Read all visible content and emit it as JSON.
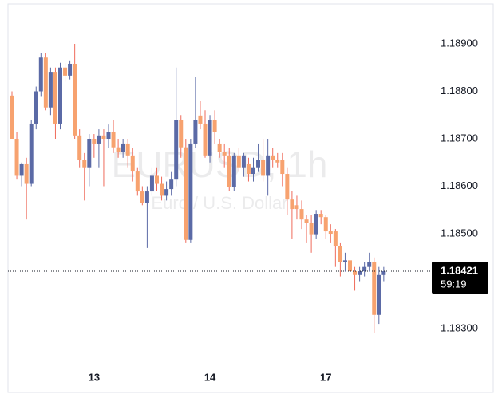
{
  "chart_data": {
    "type": "candlestick",
    "title": "EURUSD, 1h",
    "subtitle": "Euro / U.S. Dollar",
    "categories": [
      null,
      null,
      null,
      null,
      null,
      null,
      null,
      null,
      null,
      null,
      null,
      null,
      null,
      null,
      null,
      null,
      null,
      "13",
      null,
      null,
      null,
      null,
      null,
      null,
      null,
      null,
      null,
      null,
      null,
      null,
      null,
      null,
      null,
      null,
      null,
      null,
      null,
      null,
      null,
      null,
      null,
      "14",
      null,
      null,
      null,
      null,
      null,
      null,
      null,
      null,
      null,
      null,
      null,
      null,
      null,
      null,
      null,
      null,
      null,
      null,
      null,
      null,
      null,
      null,
      null,
      "17",
      null,
      null,
      null,
      null,
      null,
      null,
      null,
      null,
      null,
      null,
      null,
      null
    ],
    "open": [
      1.18791,
      1.187,
      1.18622,
      1.18648,
      1.18605,
      1.18732,
      1.188,
      1.18871,
      1.18766,
      1.18841,
      1.18732,
      1.1885,
      1.18833,
      1.18858,
      1.18707,
      1.18656,
      1.1864,
      1.187,
      1.1869,
      1.18707,
      1.187,
      1.18715,
      1.18682,
      1.18673,
      1.1869,
      1.18665,
      1.18631,
      1.18589,
      1.18564,
      1.18589,
      1.18622,
      1.18605,
      1.1858,
      1.18594,
      1.18614,
      1.1874,
      1.18682,
      1.18487,
      1.1869,
      1.18749,
      1.18732,
      1.18665,
      1.1874,
      1.1869,
      1.18673,
      1.18665,
      1.18598,
      1.18665,
      1.1864,
      1.18648,
      1.18626,
      1.1864,
      1.18656,
      1.18622,
      1.18665,
      1.18656,
      1.18656,
      1.18626,
      1.18572,
      1.1856,
      1.18552,
      1.1853,
      1.18522,
      1.18499,
      1.18542,
      1.18535,
      1.18505,
      1.18505,
      1.18474,
      1.1844,
      1.18444,
      1.18421,
      1.18413,
      1.18421,
      1.1843,
      1.1844,
      1.18329,
      1.18413
    ],
    "high": [
      1.188,
      1.18715,
      1.1865,
      1.1866,
      1.1874,
      1.1881,
      1.1888,
      1.1888,
      1.1885,
      1.1885,
      1.1886,
      1.1886,
      1.18865,
      1.189,
      1.1872,
      1.1867,
      1.1871,
      1.1871,
      1.1872,
      1.1872,
      1.1873,
      1.1874,
      1.187,
      1.187,
      1.187,
      1.1868,
      1.1864,
      1.186,
      1.186,
      1.1864,
      1.1864,
      1.1862,
      1.1861,
      1.1863,
      1.1885,
      1.1875,
      1.187,
      1.187,
      1.1883,
      1.1878,
      1.1876,
      1.1875,
      1.1876,
      1.187,
      1.1869,
      1.1868,
      1.1867,
      1.1868,
      1.1867,
      1.1866,
      1.1866,
      1.1869,
      1.187,
      1.187,
      1.1868,
      1.1867,
      1.1867,
      1.1864,
      1.1859,
      1.1858,
      1.1857,
      1.1854,
      1.1854,
      1.1855,
      1.1855,
      1.1854,
      1.1852,
      1.1851,
      1.1848,
      1.1846,
      1.1845,
      1.1843,
      1.1843,
      1.1844,
      1.1846,
      1.1845,
      1.1843,
      1.1843
    ],
    "low": [
      1.187,
      1.18614,
      1.186,
      1.1853,
      1.186,
      1.1872,
      1.1879,
      1.1876,
      1.1875,
      1.187,
      1.1872,
      1.1882,
      1.18825,
      1.187,
      1.1864,
      1.1857,
      1.186,
      1.1866,
      1.1864,
      1.186,
      1.1868,
      1.1867,
      1.1866,
      1.1866,
      1.1864,
      1.1861,
      1.1858,
      1.1856,
      1.1847,
      1.1858,
      1.1859,
      1.1857,
      1.1857,
      1.1858,
      1.186,
      1.1866,
      1.1848,
      1.1848,
      1.1868,
      1.1872,
      1.1866,
      1.1865,
      1.1869,
      1.1866,
      1.1864,
      1.1859,
      1.1859,
      1.1863,
      1.1862,
      1.1861,
      1.1861,
      1.1863,
      1.1861,
      1.1858,
      1.1864,
      1.1864,
      1.186,
      1.1854,
      1.1849,
      1.1853,
      1.1851,
      1.1848,
      1.1846,
      1.1849,
      1.1852,
      1.1849,
      1.1848,
      1.1843,
      1.1841,
      1.1842,
      1.184,
      1.1838,
      1.184,
      1.1841,
      1.1842,
      1.1829,
      1.1831,
      1.184
    ],
    "close": [
      1.187,
      1.18622,
      1.18648,
      1.18605,
      1.18732,
      1.188,
      1.18871,
      1.18766,
      1.18841,
      1.18732,
      1.1885,
      1.18833,
      1.18858,
      1.18707,
      1.18656,
      1.1864,
      1.187,
      1.1869,
      1.18707,
      1.187,
      1.18715,
      1.18682,
      1.18673,
      1.1869,
      1.18665,
      1.18631,
      1.18589,
      1.18564,
      1.18589,
      1.18622,
      1.18605,
      1.1858,
      1.18594,
      1.18614,
      1.1874,
      1.18682,
      1.18487,
      1.1869,
      1.1874,
      1.18732,
      1.18665,
      1.1874,
      1.18715,
      1.18673,
      1.18665,
      1.18598,
      1.18665,
      1.1864,
      1.18665,
      1.18626,
      1.1864,
      1.18656,
      1.18622,
      1.18665,
      1.18656,
      1.1865,
      1.18626,
      1.18572,
      1.18552,
      1.18552,
      1.1853,
      1.18522,
      1.18499,
      1.18542,
      1.18535,
      1.18505,
      1.185,
      1.18474,
      1.1844,
      1.18444,
      1.18421,
      1.18413,
      1.18421,
      1.1843,
      1.1844,
      1.18329,
      1.18413,
      1.18421
    ],
    "up_color": "#5b6aa6",
    "down_color": "#f7a26f",
    "up_wick_color": "#5b6aa6",
    "down_wick_color": "#ef6b5b",
    "ylim": [
      1.18169,
      1.18984
    ],
    "yticks": [
      {
        "value": 1.183,
        "label": "1.18300"
      },
      {
        "value": 1.185,
        "label": "1.18500"
      },
      {
        "value": 1.186,
        "label": "1.18600"
      },
      {
        "value": 1.187,
        "label": "1.18700"
      },
      {
        "value": 1.188,
        "label": "1.18800"
      },
      {
        "value": 1.189,
        "label": "1.18900"
      }
    ],
    "last_price": 1.18421,
    "countdown": "59:19"
  }
}
